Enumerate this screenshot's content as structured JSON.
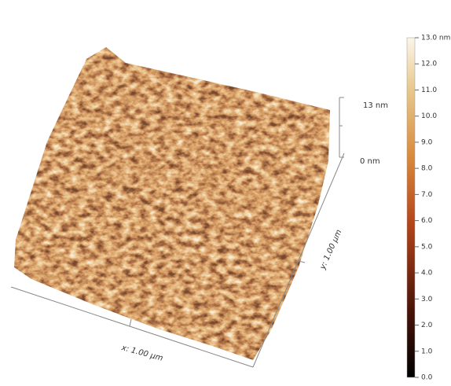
{
  "image": {
    "z_axis": {
      "top_label": "13 nm",
      "bottom_label": "0 nm"
    },
    "x_axis_label": "x: 1.00 µm",
    "y_axis_label": "y: 1.00 µm",
    "colorbar": {
      "range": [
        0,
        13
      ],
      "ticks": [
        {
          "value": 13,
          "label": "13.0 nm"
        },
        {
          "value": 12,
          "label": "12.0"
        },
        {
          "value": 11,
          "label": "11.0"
        },
        {
          "value": 10,
          "label": "10.0"
        },
        {
          "value": 9,
          "label": "9.0"
        },
        {
          "value": 8,
          "label": "8.0"
        },
        {
          "value": 7,
          "label": "7.0"
        },
        {
          "value": 6,
          "label": "6.0"
        },
        {
          "value": 5,
          "label": "5.0"
        },
        {
          "value": 4,
          "label": "4.0"
        },
        {
          "value": 3,
          "label": "3.0"
        },
        {
          "value": 2,
          "label": "2.0"
        },
        {
          "value": 1,
          "label": "1.0"
        },
        {
          "value": 0,
          "label": "0.0"
        }
      ]
    }
  }
}
